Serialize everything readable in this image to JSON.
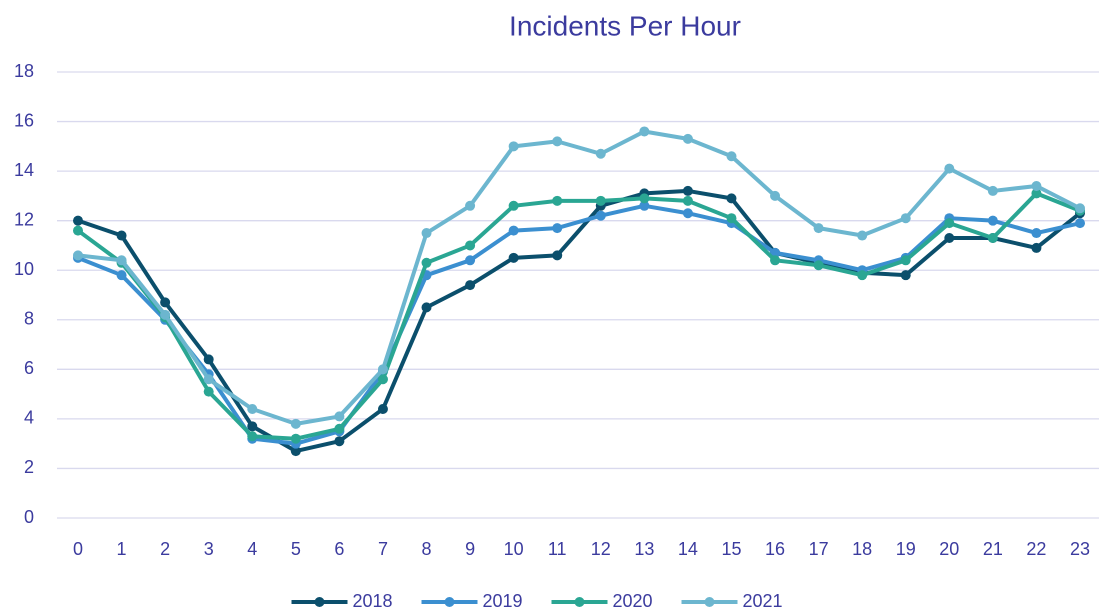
{
  "chart_data": {
    "type": "line",
    "title": "Incidents Per Hour",
    "categories": [
      "0",
      "1",
      "2",
      "3",
      "4",
      "5",
      "6",
      "7",
      "8",
      "9",
      "10",
      "11",
      "12",
      "13",
      "14",
      "15",
      "16",
      "17",
      "18",
      "19",
      "20",
      "21",
      "22",
      "23"
    ],
    "series": [
      {
        "name": "2018",
        "color": "#0b4f6c",
        "values": [
          12.0,
          11.4,
          8.7,
          6.4,
          3.7,
          2.7,
          3.1,
          4.4,
          8.5,
          9.4,
          10.5,
          10.6,
          12.6,
          13.1,
          13.2,
          12.9,
          10.7,
          10.3,
          9.9,
          9.8,
          11.3,
          11.3,
          10.9,
          12.3
        ]
      },
      {
        "name": "2019",
        "color": "#3b8fd0",
        "values": [
          10.5,
          9.8,
          8.0,
          5.8,
          3.2,
          3.0,
          3.5,
          5.9,
          9.8,
          10.4,
          11.6,
          11.7,
          12.2,
          12.6,
          12.3,
          11.9,
          10.7,
          10.4,
          10.0,
          10.5,
          12.1,
          12.0,
          11.5,
          11.9
        ]
      },
      {
        "name": "2020",
        "color": "#2aa693",
        "values": [
          11.6,
          10.3,
          8.1,
          5.1,
          3.3,
          3.2,
          3.6,
          5.6,
          10.3,
          11.0,
          12.6,
          12.8,
          12.8,
          12.9,
          12.8,
          12.1,
          10.4,
          10.2,
          9.8,
          10.4,
          11.9,
          11.3,
          13.1,
          12.4
        ]
      },
      {
        "name": "2021",
        "color": "#6cb6cf",
        "values": [
          10.6,
          10.4,
          8.2,
          5.6,
          4.4,
          3.8,
          4.1,
          6.0,
          11.5,
          12.6,
          15.0,
          15.2,
          14.7,
          15.6,
          15.3,
          14.6,
          13.0,
          11.7,
          11.4,
          12.1,
          14.1,
          13.2,
          13.4,
          12.5
        ]
      }
    ],
    "ylim": [
      0,
      18
    ],
    "yticks": [
      0,
      2,
      4,
      6,
      8,
      10,
      12,
      14,
      16,
      18
    ],
    "grid": true,
    "legend": "bottom"
  }
}
